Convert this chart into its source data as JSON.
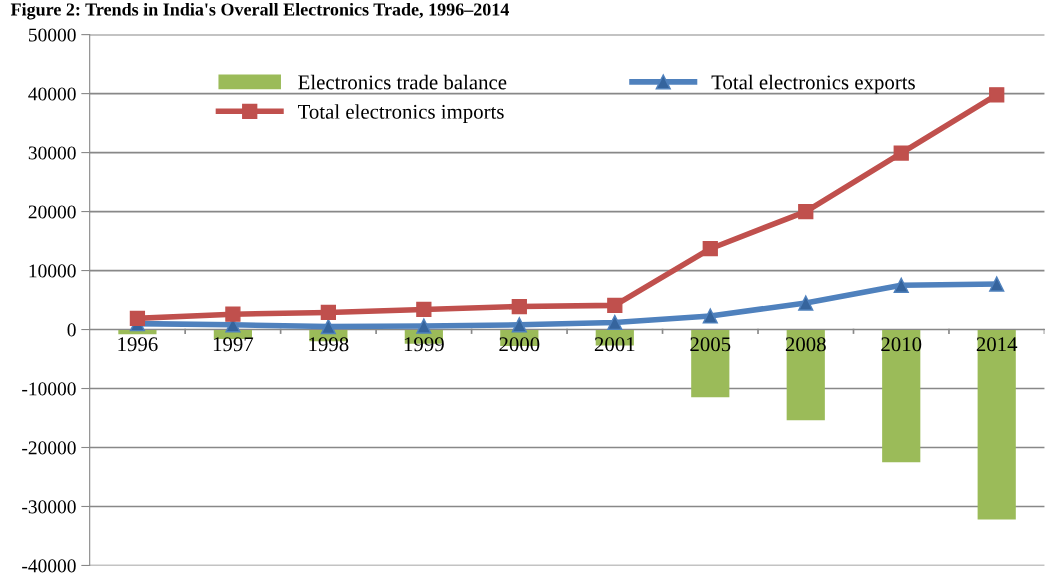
{
  "chart_data": {
    "type": "bar",
    "title": "Figure 2: Trends in India's Overall Electronics Trade, 1996–2014",
    "categories": [
      "1996",
      "1997",
      "1998",
      "1999",
      "2000",
      "2001",
      "2005",
      "2008",
      "2010",
      "2014"
    ],
    "series": [
      {
        "name": "Electronics trade balance",
        "color": "#9bbb59",
        "values": [
          -800,
          -1600,
          -2000,
          -2400,
          -2800,
          -2700,
          -11500,
          -15400,
          -22500,
          -32200
        ]
      },
      {
        "name": "Total electronics exports",
        "type": "line",
        "marker": "triangle",
        "color": "#4f81bd",
        "values": [
          1000,
          800,
          500,
          600,
          800,
          1200,
          2300,
          4500,
          7500,
          7700
        ]
      },
      {
        "name": "Total electronics imports",
        "type": "line",
        "marker": "square",
        "color": "#c0504d",
        "values": [
          1900,
          2600,
          2900,
          3400,
          3900,
          4100,
          13700,
          20000,
          29900,
          39800
        ]
      }
    ],
    "ylim": [
      -40000,
      50000
    ],
    "yticks": [
      -40000,
      -30000,
      -20000,
      -10000,
      0,
      10000,
      20000,
      30000,
      40000,
      50000
    ],
    "grid": "y",
    "legend": "top"
  }
}
